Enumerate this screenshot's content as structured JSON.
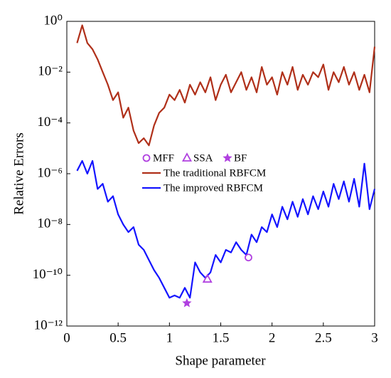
{
  "chart_data": {
    "type": "line",
    "xlabel": "Shape parameter",
    "ylabel": "Relative Errors",
    "ylog": true,
    "xlim": [
      0,
      3
    ],
    "xticks": [
      0,
      0.5,
      1,
      1.5,
      2,
      2.5,
      3
    ],
    "ylim": [
      1e-12,
      1
    ],
    "yticks": [
      {
        "value": 1e-12,
        "label": "10⁻¹²"
      },
      {
        "value": 1e-10,
        "label": "10⁻¹⁰"
      },
      {
        "value": 1e-08,
        "label": "10⁻⁸"
      },
      {
        "value": 1e-06,
        "label": "10⁻⁶"
      },
      {
        "value": 0.0001,
        "label": "10⁻⁴"
      },
      {
        "value": 0.01,
        "label": "10⁻²"
      },
      {
        "value": 1,
        "label": "10⁰"
      }
    ],
    "x": [
      0.1,
      0.15,
      0.2,
      0.25,
      0.3,
      0.35,
      0.4,
      0.45,
      0.5,
      0.55,
      0.6,
      0.65,
      0.7,
      0.75,
      0.8,
      0.85,
      0.9,
      0.95,
      1.0,
      1.05,
      1.1,
      1.15,
      1.2,
      1.25,
      1.3,
      1.35,
      1.4,
      1.45,
      1.5,
      1.55,
      1.6,
      1.65,
      1.7,
      1.75,
      1.8,
      1.85,
      1.9,
      1.95,
      2.0,
      2.05,
      2.1,
      2.15,
      2.2,
      2.25,
      2.3,
      2.35,
      2.4,
      2.45,
      2.5,
      2.55,
      2.6,
      2.65,
      2.7,
      2.75,
      2.8,
      2.85,
      2.9,
      2.95,
      3.0
    ],
    "series": [
      {
        "name": "MFF",
        "color": "#b040e0",
        "marker": "circle",
        "x": [
          1.77
        ],
        "values": [
          5e-10
        ]
      },
      {
        "name": "SSA",
        "color": "#b040e0",
        "marker": "triangle",
        "x": [
          1.37
        ],
        "values": [
          7e-11
        ]
      },
      {
        "name": "BF",
        "color": "#b040e0",
        "marker": "star",
        "x": [
          1.17
        ],
        "values": [
          8e-12
        ]
      },
      {
        "name": "The traditional RBFCM",
        "color": "#b0301a",
        "values": [
          0.14,
          0.7,
          0.14,
          0.08,
          0.032,
          0.01,
          0.0032,
          0.00079,
          0.0016,
          0.00016,
          0.0004,
          5e-05,
          1.6e-05,
          2.5e-05,
          1.3e-05,
          7.9e-05,
          0.00025,
          0.0004,
          0.0013,
          0.00079,
          0.002,
          0.00063,
          0.0032,
          0.0013,
          0.004,
          0.0016,
          0.0063,
          0.00079,
          0.0032,
          0.0079,
          0.0016,
          0.004,
          0.01,
          0.002,
          0.0063,
          0.0016,
          0.016,
          0.0032,
          0.0063,
          0.0013,
          0.01,
          0.0032,
          0.016,
          0.002,
          0.0079,
          0.0032,
          0.01,
          0.0063,
          0.02,
          0.002,
          0.01,
          0.004,
          0.016,
          0.0032,
          0.01,
          0.002,
          0.0079,
          0.0016,
          0.1
        ]
      },
      {
        "name": "The improved RBFCM",
        "color": "#1414ff",
        "values": [
          1.3e-06,
          3.2e-06,
          1e-06,
          3.2e-06,
          2.5e-07,
          4e-07,
          7.9e-08,
          1.3e-07,
          2.5e-08,
          1e-08,
          5e-09,
          7.9e-09,
          1.6e-09,
          1e-09,
          4e-10,
          1.6e-10,
          7.9e-11,
          3.2e-11,
          1.3e-11,
          1.6e-11,
          1.3e-11,
          3.2e-11,
          1.3e-11,
          3.2e-10,
          1.3e-10,
          7.9e-11,
          1.3e-10,
          6.3e-10,
          3.2e-10,
          1e-09,
          7.9e-10,
          2e-09,
          1e-09,
          6.3e-10,
          4e-09,
          2e-09,
          7.9e-09,
          5e-09,
          2.5e-08,
          7.9e-09,
          5e-08,
          1.6e-08,
          7.9e-08,
          2e-08,
          1e-07,
          2.5e-08,
          1.3e-07,
          4e-08,
          2e-07,
          5e-08,
          4e-07,
          1e-07,
          5e-07,
          7.9e-08,
          6.3e-07,
          5e-08,
          2.5e-06,
          4e-08,
          2.5e-07
        ]
      }
    ]
  }
}
